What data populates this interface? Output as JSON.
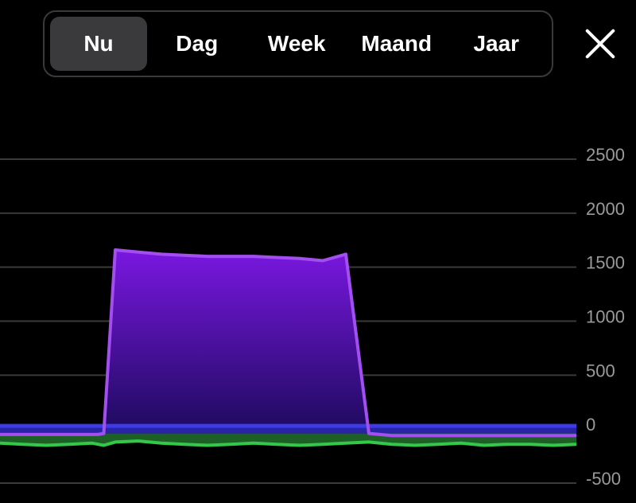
{
  "tabs": [
    {
      "label": "Nu",
      "active": true
    },
    {
      "label": "Dag",
      "active": false
    },
    {
      "label": "Week",
      "active": false
    },
    {
      "label": "Maand",
      "active": false
    },
    {
      "label": "Jaar",
      "active": false
    }
  ],
  "close_icon": "close-icon",
  "colors": {
    "purple": "#a34ff0",
    "blue": "#3b3ce6",
    "green": "#34c84a",
    "grid": "#3a3a3a"
  },
  "chart_data": {
    "type": "area",
    "ylim": [
      -500,
      2500
    ],
    "yticks": [
      2500,
      2000,
      1500,
      1000,
      500,
      0,
      -500
    ],
    "grid": true,
    "x": [
      0,
      4,
      8,
      12,
      16,
      17,
      18,
      20,
      24,
      28,
      32,
      36,
      40,
      44,
      48,
      52,
      56,
      60,
      64,
      68,
      72,
      76,
      80,
      84,
      88,
      92,
      96,
      100
    ],
    "series": [
      {
        "color": "#a34ff0",
        "values": [
          -50,
          -50,
          -50,
          -50,
          -50,
          -50,
          -40,
          1660,
          1640,
          1620,
          1610,
          1600,
          1600,
          1600,
          1590,
          1580,
          1560,
          1620,
          -40,
          -60,
          -60,
          -60,
          -60,
          -60,
          -60,
          -60,
          -60,
          -60
        ]
      },
      {
        "color": "#3b3ce6",
        "values": [
          30,
          30,
          30,
          30,
          30,
          30,
          30,
          30,
          30,
          30,
          30,
          30,
          30,
          30,
          30,
          30,
          30,
          30,
          30,
          30,
          30,
          30,
          30,
          30,
          30,
          30,
          30,
          30
        ]
      },
      {
        "color": "#34c84a",
        "values": [
          -130,
          -140,
          -150,
          -140,
          -130,
          -140,
          -150,
          -120,
          -110,
          -130,
          -140,
          -150,
          -140,
          -130,
          -140,
          -150,
          -140,
          -130,
          -120,
          -140,
          -150,
          -140,
          -130,
          -150,
          -140,
          -140,
          -150,
          -140
        ]
      }
    ]
  }
}
